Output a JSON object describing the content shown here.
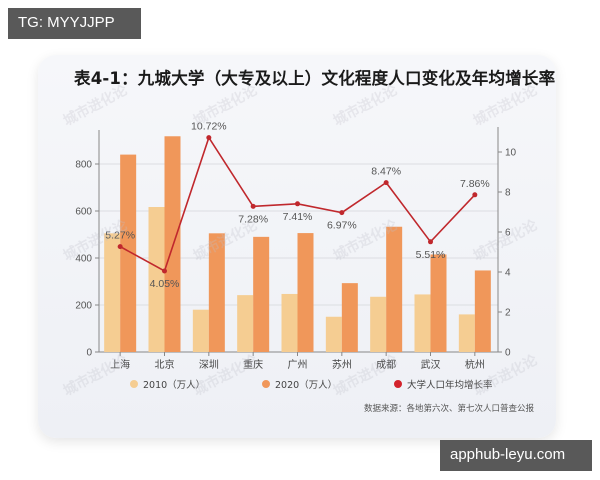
{
  "overlays": {
    "top_left_tag": "TG: MYYJJPP",
    "bottom_right_tag": "apphub-leyu.com"
  },
  "watermark": "城市进化论",
  "chart_data": {
    "type": "bar",
    "title": "表4-1：九城大学（大专及以上）文化程度人口变化及年均增长率",
    "categories": [
      "上海",
      "北京",
      "深圳",
      "重庆",
      "广州",
      "苏州",
      "成都",
      "武汉",
      "杭州"
    ],
    "series": [
      {
        "name": "2010（万人）",
        "type": "bar",
        "axis": "left",
        "color": "#f5cd92",
        "values": [
          505,
          617,
          180,
          242,
          247,
          150,
          235,
          245,
          160
        ]
      },
      {
        "name": "2020（万人）",
        "type": "bar",
        "axis": "left",
        "color": "#f0975a",
        "values": [
          840,
          918,
          505,
          490,
          506,
          293,
          533,
          415,
          347
        ]
      },
      {
        "name": "大学人口年均增长率",
        "type": "line",
        "axis": "right",
        "color": "#c0282d",
        "values": [
          5.27,
          4.05,
          10.72,
          7.28,
          7.41,
          6.97,
          8.47,
          5.51,
          7.86
        ],
        "labels": [
          "5.27%",
          "4.05%",
          "10.72%",
          "7.28%",
          "7.41%",
          "6.97%",
          "8.47%",
          "5.51%",
          "7.86%"
        ]
      }
    ],
    "left_axis": {
      "ticks": [
        0,
        200,
        400,
        600,
        800
      ],
      "ylim": [
        0,
        960
      ]
    },
    "right_axis": {
      "ticks": [
        0,
        2,
        4,
        6,
        8,
        10
      ],
      "ylim": [
        0,
        11.5
      ]
    },
    "grid": true,
    "legend_position": "bottom",
    "xlabel": "",
    "ylabel": "",
    "source_note": "数据来源：各地第六次、第七次人口普查公报"
  },
  "legend": [
    {
      "label": "2010（万人）",
      "color": "#f5cd92"
    },
    {
      "label": "2020（万人）",
      "color": "#f0975a"
    },
    {
      "label": "大学人口年均增长率",
      "color": "#d3232c"
    }
  ]
}
